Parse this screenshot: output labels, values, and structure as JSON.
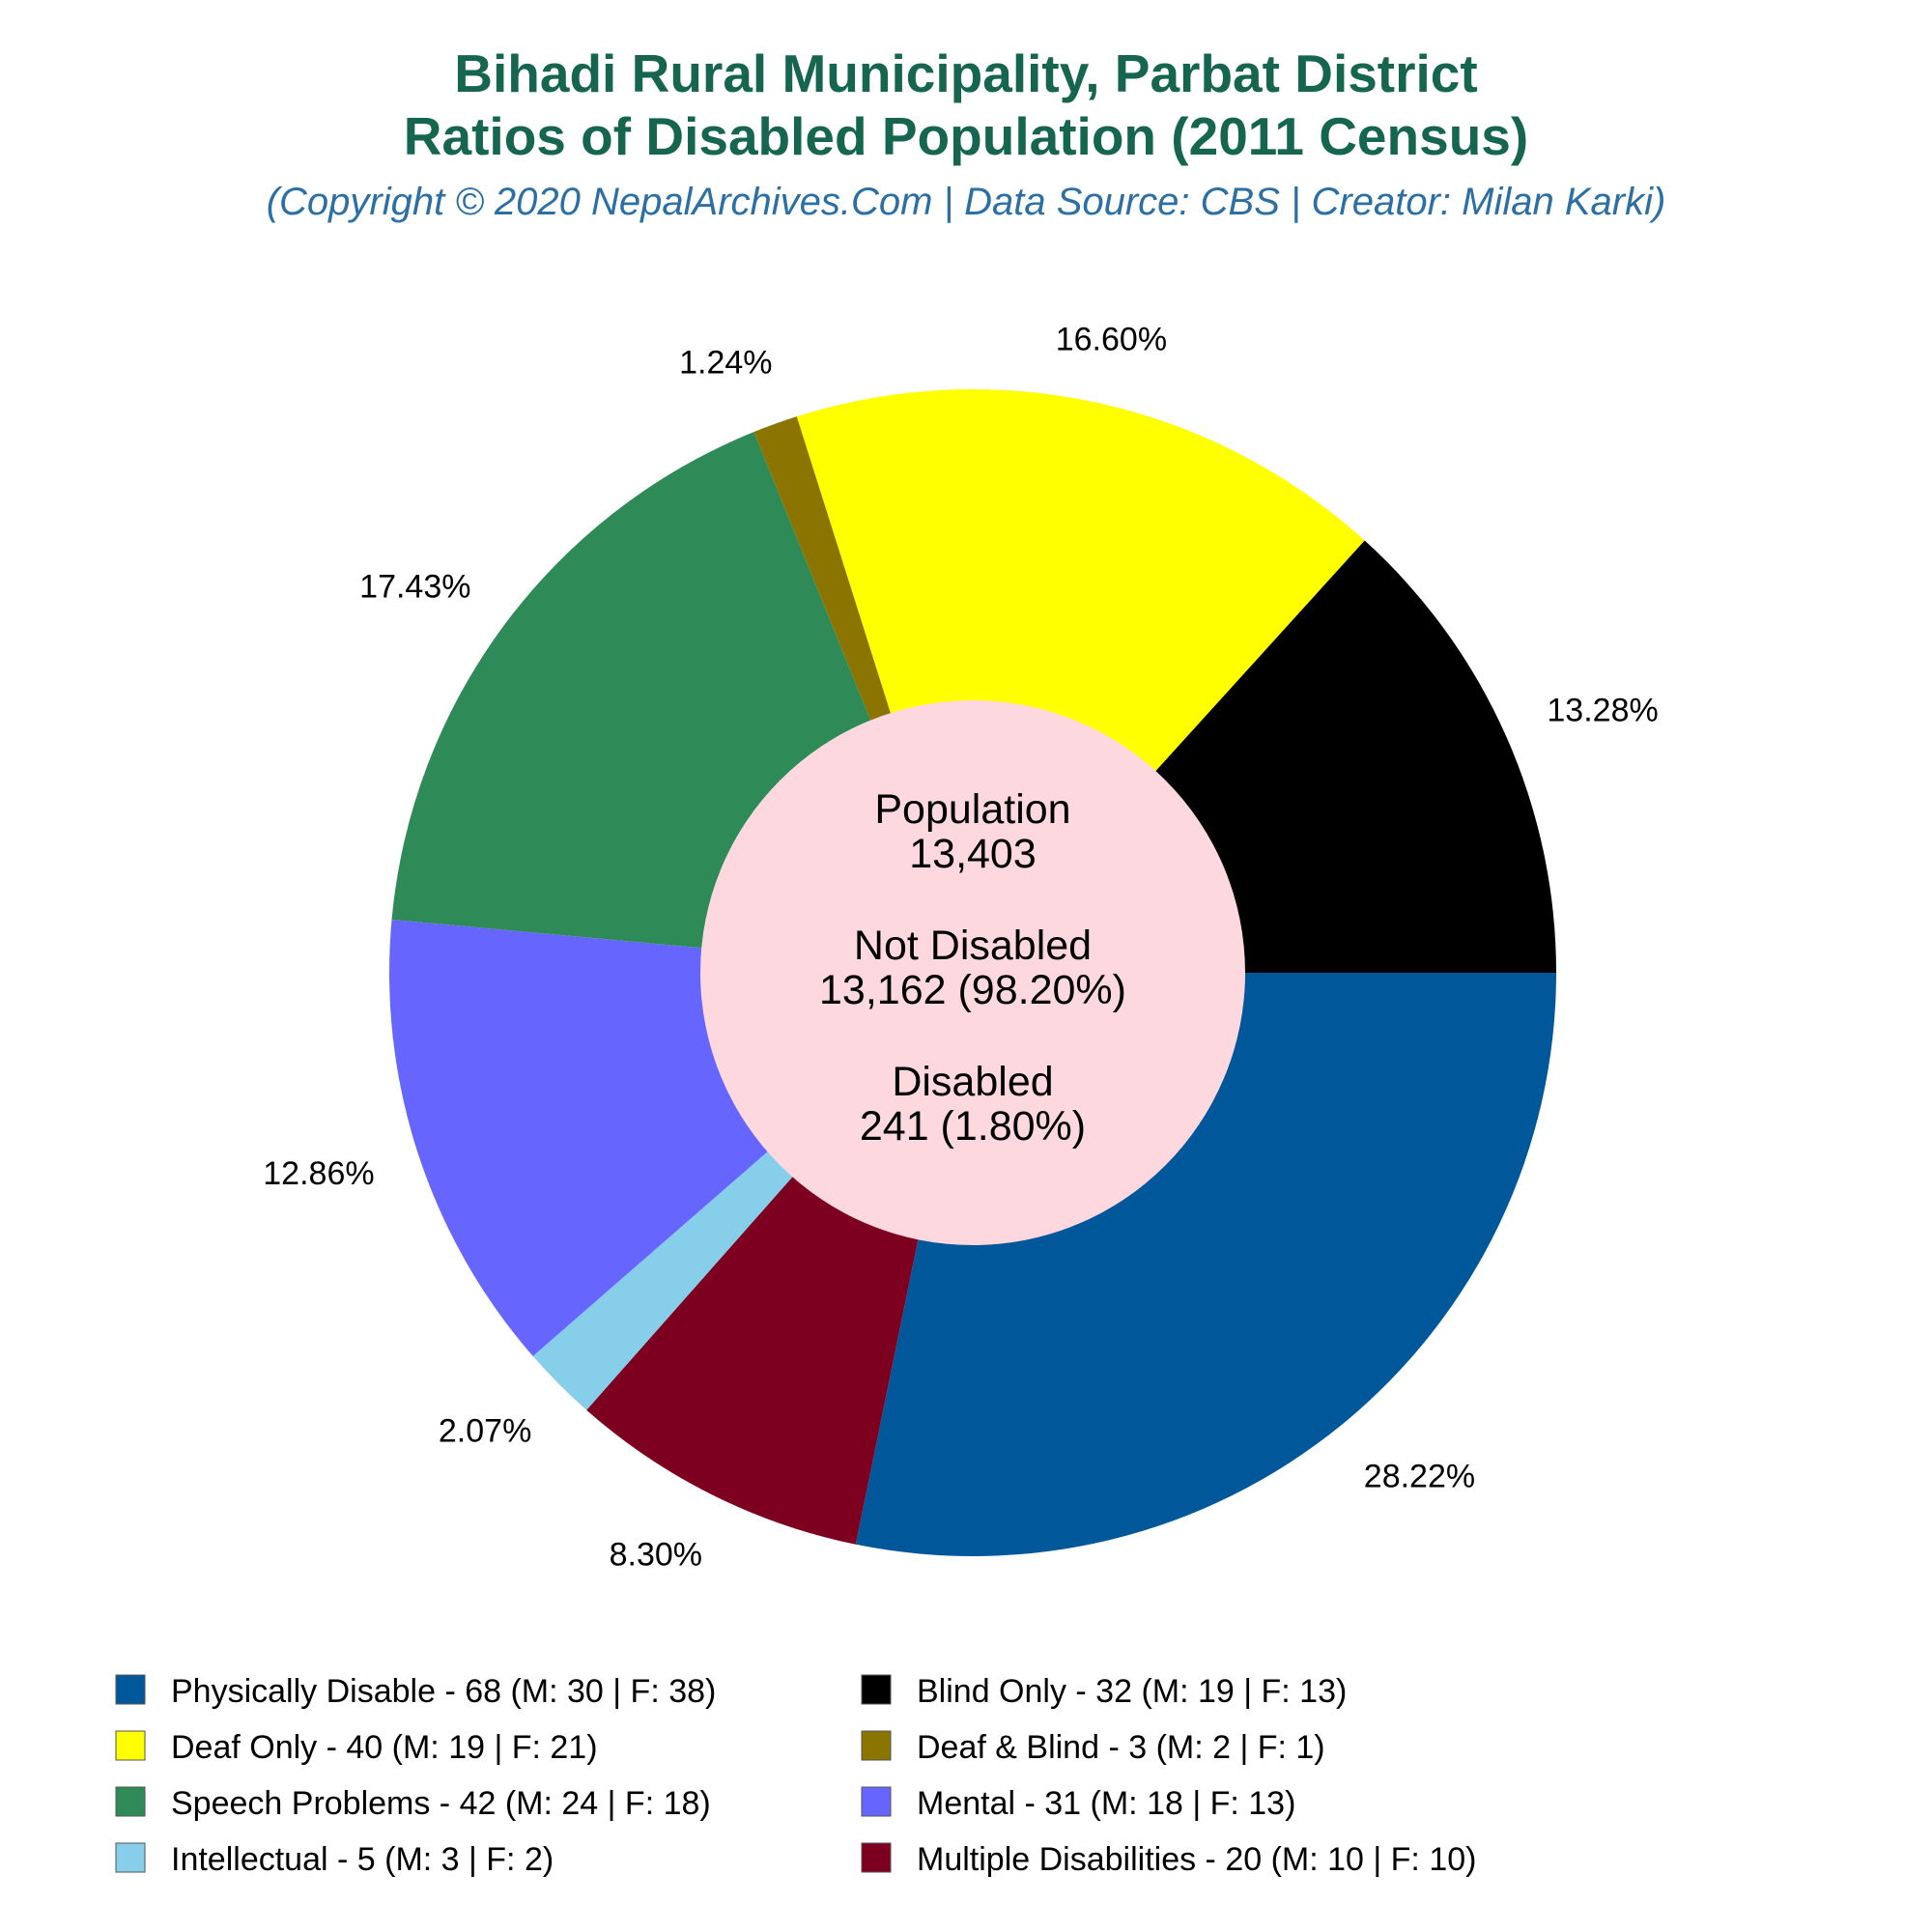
{
  "title_line1": "Bihadi Rural Municipality, Parbat District",
  "title_line2": "Ratios of Disabled Population (2011 Census)",
  "subtitle": "(Copyright © 2020 NepalArchives.Com | Data Source: CBS | Creator: Milan Karki)",
  "center": {
    "population_label": "Population",
    "population_value": "13,403",
    "not_disabled_label": "Not Disabled",
    "not_disabled_value": "13,162 (98.20%)",
    "disabled_label": "Disabled",
    "disabled_value": "241 (1.80%)",
    "fill": "#fdd8de"
  },
  "chart_data": {
    "type": "pie",
    "title": "Bihadi Rural Municipality, Parbat District Ratios of Disabled Population (2011 Census)",
    "slices": [
      {
        "label": "Physically Disable - 68 (M: 30 | F: 38)",
        "value": 68,
        "percent": "28.22%",
        "color": "#00589b"
      },
      {
        "label": "Multiple Disabilities - 20 (M: 10 | F: 10)",
        "value": 20,
        "percent": "8.30%",
        "color": "#7d0021"
      },
      {
        "label": "Intellectual - 5 (M: 3 | F: 2)",
        "value": 5,
        "percent": "2.07%",
        "color": "#87ceeb"
      },
      {
        "label": "Mental - 31 (M: 18 | F: 13)",
        "value": 31,
        "percent": "12.86%",
        "color": "#6666ff"
      },
      {
        "label": "Speech Problems - 42 (M: 24 | F: 18)",
        "value": 42,
        "percent": "17.43%",
        "color": "#2e8b57"
      },
      {
        "label": "Deaf & Blind - 3 (M: 2 | F: 1)",
        "value": 3,
        "percent": "1.24%",
        "color": "#8b7500"
      },
      {
        "label": "Deaf Only - 40 (M: 19 | F: 21)",
        "value": 40,
        "percent": "16.60%",
        "color": "#ffff00"
      },
      {
        "label": "Blind Only - 32 (M: 19 | F: 13)",
        "value": 32,
        "percent": "13.28%",
        "color": "#000000"
      }
    ],
    "legend": [
      {
        "label": "Physically Disable - 68 (M: 30 | F: 38)",
        "color": "#00589b"
      },
      {
        "label": "Blind Only - 32 (M: 19 | F: 13)",
        "color": "#000000"
      },
      {
        "label": "Deaf Only - 40 (M: 19 | F: 21)",
        "color": "#ffff00"
      },
      {
        "label": "Deaf & Blind - 3 (M: 2 | F: 1)",
        "color": "#8b7500"
      },
      {
        "label": "Speech Problems - 42 (M: 24 | F: 18)",
        "color": "#2e8b57"
      },
      {
        "label": "Mental - 31 (M: 18 | F: 13)",
        "color": "#6666ff"
      },
      {
        "label": "Intellectual - 5 (M: 3 | F: 2)",
        "color": "#87ceeb"
      },
      {
        "label": "Multiple Disabilities - 20 (M: 10 | F: 10)",
        "color": "#7d0021"
      }
    ],
    "legend_position": "bottom"
  }
}
